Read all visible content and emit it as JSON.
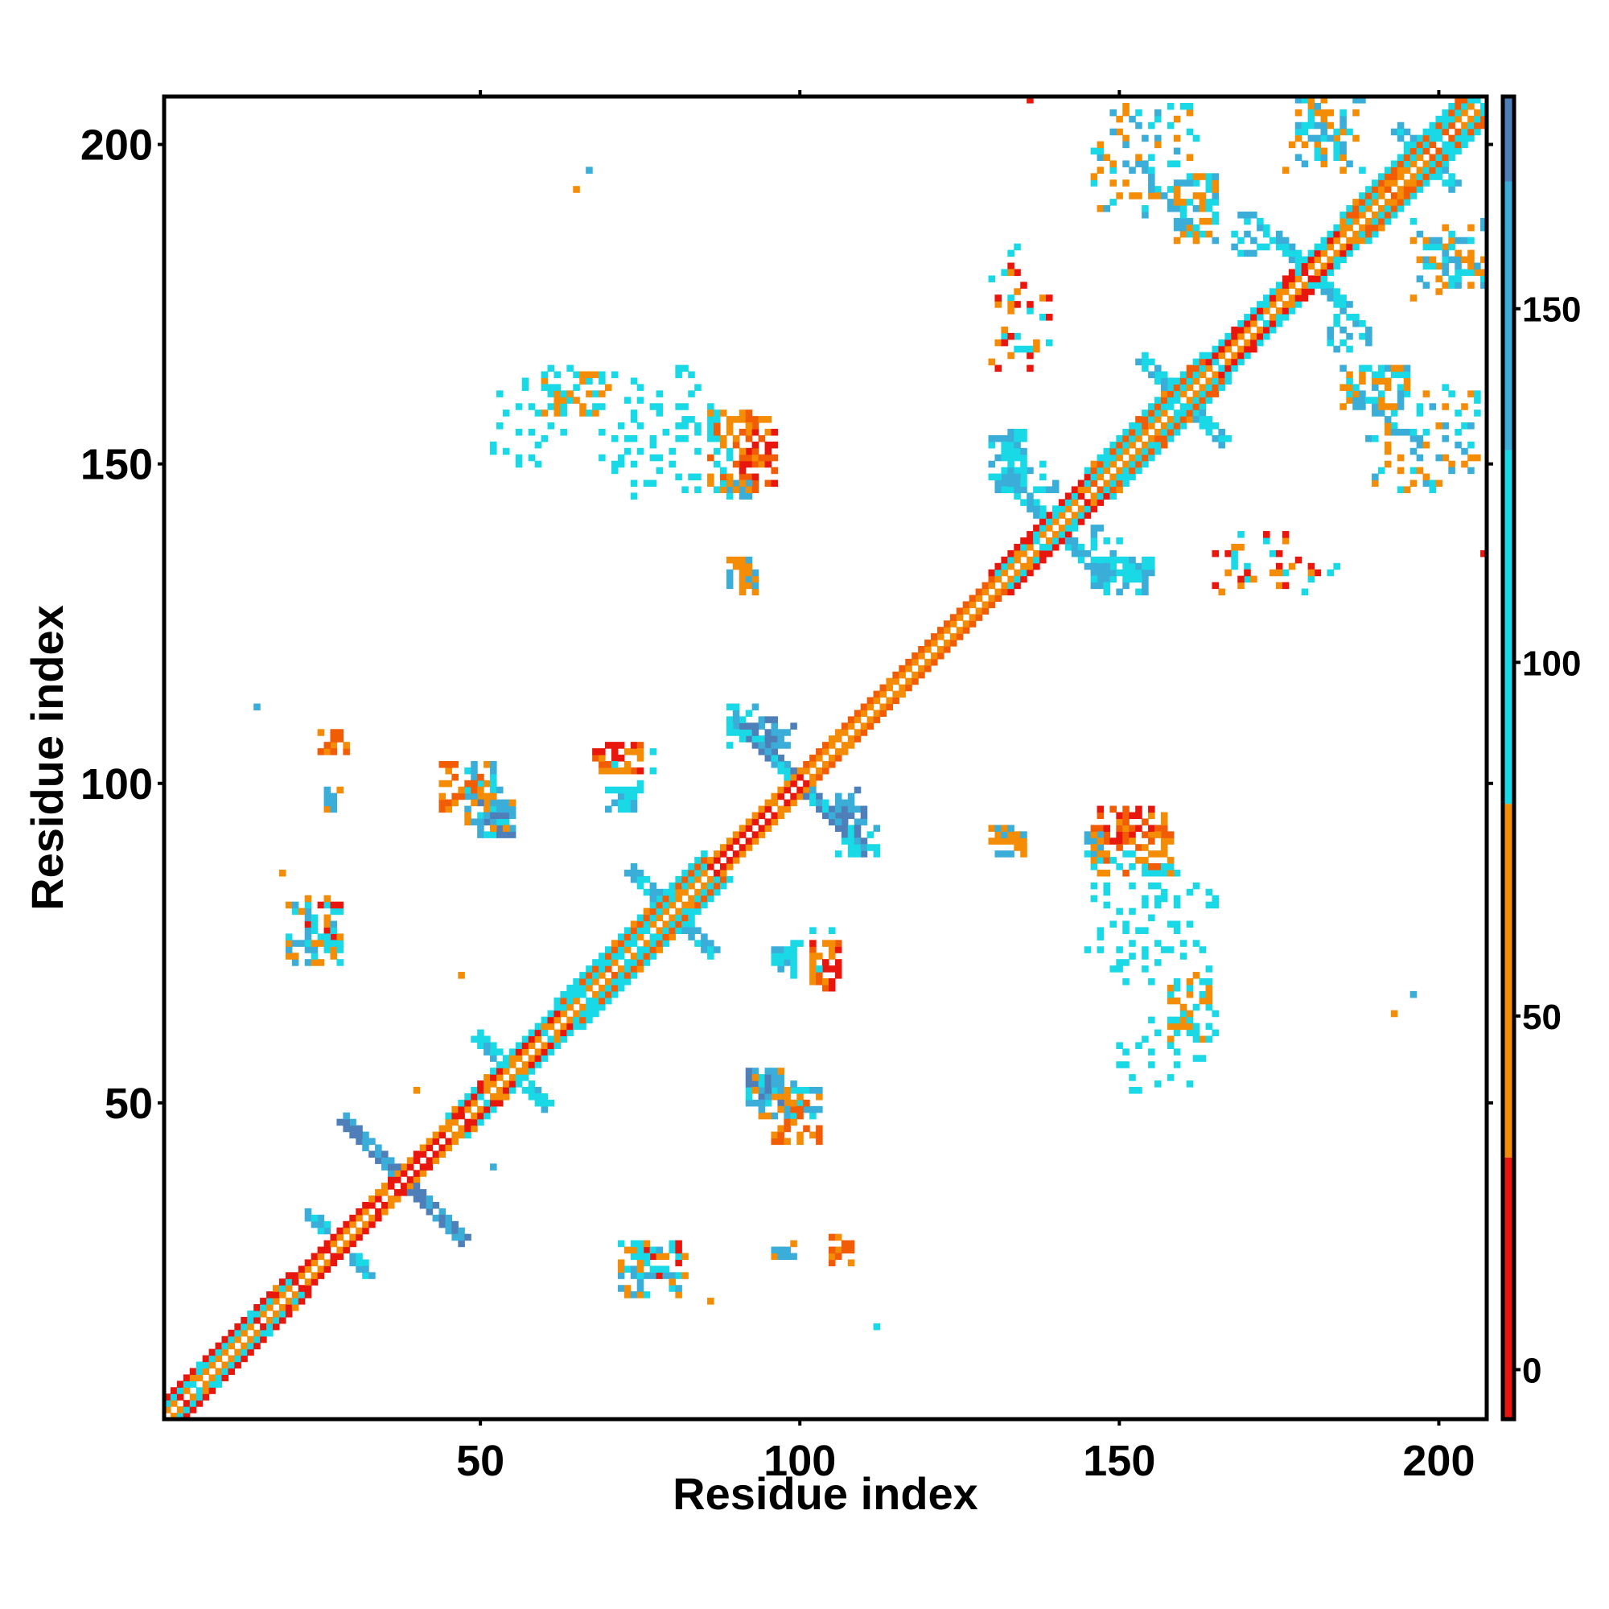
{
  "chart_data": {
    "type": "heatmap",
    "title": "",
    "xlabel": "Residue index",
    "ylabel": "Residue index",
    "xlim": [
      1,
      207
    ],
    "ylim": [
      1,
      207
    ],
    "xticks": [
      50,
      100,
      150,
      200
    ],
    "yticks": [
      50,
      100,
      150,
      200
    ],
    "grid": false,
    "colorbar": {
      "range": [
        -7,
        180
      ],
      "ticks": [
        0,
        50,
        100,
        150
      ],
      "stops": [
        {
          "from": -7,
          "to": 30,
          "color": "#e8160c"
        },
        {
          "from": 30,
          "to": 80,
          "color": "#f48c06"
        },
        {
          "from": 80,
          "to": 130,
          "color": "#1ad9e6"
        },
        {
          "from": 130,
          "to": 168,
          "color": "#3aaed8"
        },
        {
          "from": 168,
          "to": 180,
          "color": "#4f7fb8"
        }
      ]
    },
    "colors": {
      "red": "#e8160c",
      "orange_red": "#f25c05",
      "orange": "#f48c06",
      "cyan": "#1ad9e6",
      "blue": "#3aaed8",
      "steel": "#4f7fb8"
    },
    "diagonal": {
      "from": 1,
      "to": 207
    },
    "diagonal_bands": [
      {
        "from": 1,
        "to": 20,
        "offsets": [
          1,
          2,
          3
        ],
        "palette": [
          "orange",
          "cyan",
          "red"
        ]
      },
      {
        "from": 20,
        "to": 33,
        "offsets": [
          1,
          2
        ],
        "palette": [
          "orange",
          "red"
        ]
      },
      {
        "from": 33,
        "to": 45,
        "offsets": [
          1,
          2
        ],
        "palette": [
          "red",
          "orange"
        ]
      },
      {
        "from": 45,
        "to": 62,
        "offsets": [
          1,
          2,
          3
        ],
        "palette": [
          "orange",
          "red",
          "cyan"
        ]
      },
      {
        "from": 62,
        "to": 85,
        "offsets": [
          1,
          2,
          3,
          4
        ],
        "palette": [
          "orange",
          "cyan",
          "orange_red",
          "cyan"
        ]
      },
      {
        "from": 85,
        "to": 100,
        "offsets": [
          1,
          2
        ],
        "palette": [
          "red",
          "orange"
        ]
      },
      {
        "from": 100,
        "to": 130,
        "offsets": [
          1,
          2
        ],
        "palette": [
          "orange",
          "orange_red"
        ]
      },
      {
        "from": 130,
        "to": 145,
        "offsets": [
          1,
          2,
          3
        ],
        "palette": [
          "orange",
          "cyan",
          "red"
        ]
      },
      {
        "from": 145,
        "to": 163,
        "offsets": [
          1,
          2,
          3,
          4
        ],
        "palette": [
          "orange",
          "cyan",
          "orange_red",
          "cyan"
        ]
      },
      {
        "from": 163,
        "to": 185,
        "offsets": [
          1,
          2,
          3
        ],
        "palette": [
          "orange",
          "red",
          "cyan"
        ]
      },
      {
        "from": 185,
        "to": 207,
        "offsets": [
          1,
          2,
          3,
          4
        ],
        "palette": [
          "orange",
          "cyan",
          "orange_red",
          "cyan"
        ]
      }
    ],
    "antidiagonal_crosses": [
      {
        "center": [
          38,
          38
        ],
        "half_length": 9,
        "palette": [
          "steel",
          "blue"
        ]
      },
      {
        "center": [
          100,
          100
        ],
        "half_length": 10,
        "palette": [
          "blue",
          "steel",
          "cyan"
        ]
      },
      {
        "center": [
          28,
          28
        ],
        "half_length": 5,
        "palette": [
          "cyan",
          "blue"
        ]
      },
      {
        "center": [
          55,
          55
        ],
        "half_length": 5,
        "palette": [
          "cyan",
          "blue"
        ]
      },
      {
        "center": [
          80,
          80
        ],
        "half_length": 6,
        "palette": [
          "cyan",
          "blue"
        ]
      },
      {
        "center": [
          140,
          140
        ],
        "half_length": 6,
        "palette": [
          "cyan",
          "blue"
        ]
      },
      {
        "center": [
          160,
          160
        ],
        "half_length": 6,
        "palette": [
          "cyan",
          "blue"
        ]
      },
      {
        "center": [
          180,
          180
        ],
        "half_length": 5,
        "palette": [
          "cyan",
          "blue"
        ]
      },
      {
        "center": [
          198,
          198
        ],
        "half_length": 4,
        "palette": [
          "cyan",
          "blue"
        ]
      }
    ],
    "contact_clusters": [
      {
        "x": [
          27,
          29
        ],
        "y": [
          105,
          108
        ],
        "palette": [
          "orange",
          "orange_red"
        ]
      },
      {
        "x": [
          26,
          28
        ],
        "y": [
          96,
          98
        ],
        "palette": [
          "blue",
          "orange"
        ]
      },
      {
        "x": [
          48,
          52
        ],
        "y": [
          96,
          103
        ],
        "palette": [
          "orange",
          "blue",
          "cyan"
        ]
      },
      {
        "x": [
          50,
          55
        ],
        "y": [
          92,
          97
        ],
        "palette": [
          "blue",
          "cyan",
          "steel"
        ]
      },
      {
        "x": [
          23,
          28
        ],
        "y": [
          76,
          81
        ],
        "palette": [
          "cyan",
          "blue",
          "red"
        ]
      },
      {
        "x": [
          25,
          28
        ],
        "y": [
          72,
          76
        ],
        "palette": [
          "orange",
          "cyan"
        ]
      },
      {
        "x": [
          68,
          75
        ],
        "y": [
          102,
          106
        ],
        "palette": [
          "orange",
          "red",
          "orange_red"
        ]
      },
      {
        "x": [
          90,
          94
        ],
        "y": [
          107,
          111
        ],
        "palette": [
          "blue",
          "cyan"
        ]
      },
      {
        "x": [
          93,
          99
        ],
        "y": [
          105,
          110
        ],
        "palette": [
          "blue",
          "steel"
        ]
      },
      {
        "x": [
          106,
          112
        ],
        "y": [
          89,
          94
        ],
        "palette": [
          "cyan",
          "blue"
        ]
      },
      {
        "x": [
          91,
          96
        ],
        "y": [
          147,
          157
        ],
        "palette": [
          "orange",
          "orange_red",
          "red"
        ]
      },
      {
        "x": [
          89,
          92
        ],
        "y": [
          145,
          148
        ],
        "palette": [
          "cyan",
          "blue"
        ]
      },
      {
        "x": [
          91,
          93
        ],
        "y": [
          130,
          133
        ],
        "palette": [
          "blue",
          "orange"
        ]
      },
      {
        "x": [
          74,
          86
        ],
        "y": [
          145,
          160
        ],
        "palette": [
          "cyan"
        ]
      },
      {
        "x": [
          60,
          70
        ],
        "y": [
          158,
          164
        ],
        "palette": [
          "cyan",
          "orange"
        ]
      },
      {
        "x": [
          92,
          99
        ],
        "y": [
          48,
          55
        ],
        "palette": [
          "cyan",
          "blue",
          "orange"
        ]
      },
      {
        "x": [
          96,
          103
        ],
        "y": [
          44,
          50
        ],
        "palette": [
          "orange",
          "orange_red"
        ]
      },
      {
        "x": [
          102,
          105
        ],
        "y": [
          69,
          77
        ],
        "palette": [
          "red",
          "orange",
          "cyan"
        ]
      },
      {
        "x": [
          96,
          100
        ],
        "y": [
          70,
          75
        ],
        "palette": [
          "blue",
          "cyan"
        ]
      },
      {
        "x": [
          72,
          82
        ],
        "y": [
          20,
          27
        ],
        "palette": [
          "cyan",
          "blue",
          "orange"
        ]
      },
      {
        "x": [
          96,
          99
        ],
        "y": [
          26,
          28
        ],
        "palette": [
          "orange",
          "blue"
        ]
      },
      {
        "x": [
          104,
          108
        ],
        "y": [
          25,
          29
        ],
        "palette": [
          "orange",
          "orange_red"
        ]
      },
      {
        "x": [
          132,
          135
        ],
        "y": [
          146,
          155
        ],
        "palette": [
          "blue",
          "cyan"
        ]
      },
      {
        "x": [
          135,
          140
        ],
        "y": [
          146,
          150
        ],
        "palette": [
          "cyan",
          "blue"
        ]
      },
      {
        "x": [
          146,
          155
        ],
        "y": [
          130,
          135
        ],
        "palette": [
          "blue",
          "cyan"
        ]
      },
      {
        "x": [
          130,
          135
        ],
        "y": [
          89,
          92
        ],
        "palette": [
          "blue",
          "orange"
        ]
      },
      {
        "x": [
          146,
          158
        ],
        "y": [
          86,
          93
        ],
        "palette": [
          "orange",
          "orange_red",
          "cyan"
        ]
      },
      {
        "x": [
          149,
          165
        ],
        "y": [
          52,
          84
        ],
        "palette": [
          "cyan"
        ]
      },
      {
        "x": [
          165,
          184
        ],
        "y": [
          130,
          136
        ],
        "palette": [
          "cyan",
          "red",
          "orange"
        ]
      },
      {
        "x": [
          148,
          158
        ],
        "y": [
          190,
          205
        ],
        "palette": [
          "blue",
          "cyan",
          "orange"
        ]
      },
      {
        "x": [
          158,
          165
        ],
        "y": [
          185,
          195
        ],
        "palette": [
          "cyan",
          "orange",
          "blue"
        ]
      },
      {
        "x": [
          130,
          140
        ],
        "y": [
          167,
          180
        ],
        "palette": [
          "cyan",
          "orange",
          "red"
        ]
      },
      {
        "x": [
          183,
          189
        ],
        "y": [
          168,
          173
        ],
        "palette": [
          "cyan",
          "blue"
        ]
      },
      {
        "x": [
          189,
          206
        ],
        "y": [
          146,
          162
        ],
        "palette": [
          "blue",
          "cyan",
          "orange"
        ]
      },
      {
        "x": [
          195,
          207
        ],
        "y": [
          175,
          188
        ],
        "palette": [
          "blue",
          "orange",
          "cyan"
        ]
      },
      {
        "x": [
          178,
          185
        ],
        "y": [
          198,
          207
        ],
        "palette": [
          "orange",
          "cyan",
          "blue"
        ]
      }
    ],
    "single_cells": [
      {
        "x": 15,
        "y": 112,
        "color": "blue"
      },
      {
        "x": 19,
        "y": 86,
        "color": "orange"
      },
      {
        "x": 40,
        "y": 52,
        "color": "orange"
      },
      {
        "x": 70,
        "y": 96,
        "color": "blue"
      },
      {
        "x": 112,
        "y": 15,
        "color": "cyan"
      },
      {
        "x": 47,
        "y": 70,
        "color": "orange"
      },
      {
        "x": 65,
        "y": 193,
        "color": "orange"
      },
      {
        "x": 67,
        "y": 196,
        "color": "blue"
      },
      {
        "x": 136,
        "y": 207,
        "color": "red"
      },
      {
        "x": 207,
        "y": 136,
        "color": "red"
      },
      {
        "x": 193,
        "y": 64,
        "color": "orange"
      },
      {
        "x": 196,
        "y": 67,
        "color": "blue"
      },
      {
        "x": 52,
        "y": 40,
        "color": "blue"
      },
      {
        "x": 86,
        "y": 19,
        "color": "orange"
      }
    ]
  }
}
